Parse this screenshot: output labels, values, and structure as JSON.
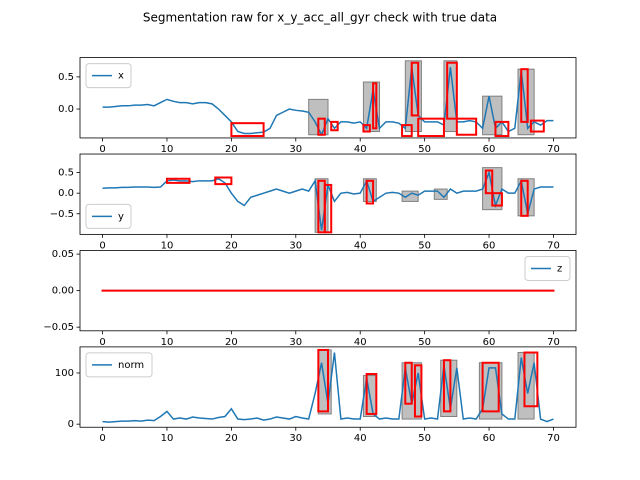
{
  "title": "Segmentation raw for x_y_acc_all_gyr check with true data",
  "chart_data": [
    {
      "type": "line",
      "legend": "upper left",
      "xlim": [
        -3.5,
        73.5
      ],
      "xticks": [
        0,
        10,
        20,
        30,
        40,
        50,
        60,
        70
      ],
      "ylim": [
        -0.45,
        0.8
      ],
      "yticks": [
        {
          "value": 0,
          "label": "0.0"
        },
        0.5
      ],
      "x": [
        0,
        1,
        2,
        3,
        4,
        5,
        6,
        7,
        8,
        9,
        10,
        11,
        12,
        13,
        14,
        15,
        16,
        17,
        18,
        19,
        20,
        21,
        22,
        23,
        24,
        25,
        26,
        27,
        28,
        29,
        30,
        31,
        32,
        33,
        34,
        35,
        36,
        37,
        38,
        39,
        40,
        41,
        42,
        43,
        44,
        45,
        46,
        47,
        48,
        49,
        50,
        51,
        52,
        53,
        54,
        55,
        56,
        57,
        58,
        59,
        60,
        61,
        62,
        63,
        64,
        65,
        66,
        67,
        68,
        69,
        70
      ],
      "series": [
        {
          "name": "x",
          "color": "#1f77b4",
          "values": [
            0.03,
            0.03,
            0.04,
            0.05,
            0.05,
            0.06,
            0.06,
            0.07,
            0.05,
            0.1,
            0.15,
            0.12,
            0.1,
            0.1,
            0.08,
            0.1,
            0.1,
            0.08,
            0.0,
            -0.1,
            -0.2,
            -0.35,
            -0.38,
            -0.38,
            -0.37,
            -0.36,
            -0.3,
            -0.1,
            -0.05,
            0.0,
            -0.02,
            -0.03,
            -0.05,
            -0.2,
            -0.4,
            -0.15,
            -0.3,
            -0.2,
            -0.2,
            -0.22,
            -0.2,
            -0.3,
            0.3,
            -0.3,
            -0.2,
            -0.2,
            -0.22,
            -0.3,
            0.65,
            -0.1,
            -0.2,
            -0.2,
            -0.2,
            -0.25,
            0.65,
            -0.2,
            -0.2,
            -0.18,
            -0.2,
            -0.3,
            0.2,
            -0.3,
            -0.2,
            -0.35,
            -0.3,
            0.6,
            -0.3,
            -0.2,
            -0.25,
            -0.18,
            -0.18
          ]
        }
      ],
      "gray_color": "#808080",
      "gray_regions": [
        {
          "x": [
            32,
            35
          ],
          "y": [
            -0.4,
            0.15
          ]
        },
        {
          "x": [
            40.5,
            43
          ],
          "y": [
            -0.35,
            0.42
          ]
        },
        {
          "x": [
            47,
            49.5
          ],
          "y": [
            -0.35,
            0.75
          ]
        },
        {
          "x": [
            53,
            55
          ],
          "y": [
            -0.35,
            0.75
          ]
        },
        {
          "x": [
            59,
            62
          ],
          "y": [
            -0.4,
            0.2
          ]
        },
        {
          "x": [
            64.5,
            67
          ],
          "y": [
            -0.4,
            0.62
          ]
        }
      ],
      "red_color": "#ff0000",
      "red_regions": [
        {
          "x": [
            20,
            25
          ],
          "y": [
            -0.42,
            -0.22
          ]
        },
        {
          "x": [
            33.5,
            34.5
          ],
          "y": [
            -0.4,
            -0.15
          ]
        },
        {
          "x": [
            35.5,
            36.5
          ],
          "y": [
            -0.33,
            -0.2
          ]
        },
        {
          "x": [
            40.5,
            41.5
          ],
          "y": [
            -0.35,
            -0.25
          ]
        },
        {
          "x": [
            42,
            42.5
          ],
          "y": [
            -0.3,
            0.4
          ]
        },
        {
          "x": [
            46.5,
            48
          ],
          "y": [
            -0.42,
            -0.25
          ]
        },
        {
          "x": [
            48,
            49
          ],
          "y": [
            -0.1,
            0.72
          ]
        },
        {
          "x": [
            49,
            53
          ],
          "y": [
            -0.42,
            -0.15
          ]
        },
        {
          "x": [
            53.5,
            55
          ],
          "y": [
            -0.15,
            0.72
          ]
        },
        {
          "x": [
            55,
            58
          ],
          "y": [
            -0.4,
            -0.15
          ]
        },
        {
          "x": [
            61,
            63
          ],
          "y": [
            -0.42,
            -0.2
          ]
        },
        {
          "x": [
            65,
            66
          ],
          "y": [
            -0.2,
            0.62
          ]
        },
        {
          "x": [
            66.5,
            68.5
          ],
          "y": [
            -0.35,
            -0.18
          ]
        }
      ]
    },
    {
      "type": "line",
      "legend": "lower left",
      "xlim": [
        -3.5,
        73.5
      ],
      "xticks": [
        0,
        10,
        20,
        30,
        40,
        50,
        60,
        70
      ],
      "ylim": [
        -1.0,
        0.95
      ],
      "yticks": [
        {
          "value": -0.5,
          "label": "−0.5"
        },
        {
          "value": 0,
          "label": "0.0"
        },
        0.5
      ],
      "x": [
        0,
        1,
        2,
        3,
        4,
        5,
        6,
        7,
        8,
        9,
        10,
        11,
        12,
        13,
        14,
        15,
        16,
        17,
        18,
        19,
        20,
        21,
        22,
        23,
        24,
        25,
        26,
        27,
        28,
        29,
        30,
        31,
        32,
        33,
        34,
        35,
        36,
        37,
        38,
        39,
        40,
        41,
        42,
        43,
        44,
        45,
        46,
        47,
        48,
        49,
        50,
        51,
        52,
        53,
        54,
        55,
        56,
        57,
        58,
        59,
        60,
        61,
        62,
        63,
        64,
        65,
        66,
        67,
        68,
        69,
        70
      ],
      "series": [
        {
          "name": "y",
          "color": "#1f77b4",
          "values": [
            0.12,
            0.13,
            0.13,
            0.14,
            0.14,
            0.15,
            0.15,
            0.15,
            0.14,
            0.15,
            0.3,
            0.32,
            0.3,
            0.3,
            0.28,
            0.3,
            0.3,
            0.3,
            0.35,
            0.25,
            0.0,
            -0.2,
            -0.3,
            -0.1,
            -0.05,
            0.0,
            0.05,
            0.1,
            0.05,
            0.0,
            0.05,
            0.1,
            0.05,
            0.3,
            -0.9,
            0.2,
            -0.2,
            0.0,
            0.02,
            -0.02,
            0.0,
            0.3,
            -0.2,
            -0.1,
            0.0,
            0.02,
            0.0,
            -0.1,
            0.0,
            -0.05,
            0.05,
            0.05,
            0.05,
            -0.1,
            0.1,
            0.0,
            0.05,
            0.05,
            0.05,
            0.1,
            0.5,
            -0.3,
            0.1,
            0.0,
            0.0,
            0.3,
            -0.5,
            0.1,
            0.15,
            0.15,
            0.15
          ]
        }
      ],
      "gray_color": "#808080",
      "gray_regions": [
        {
          "x": [
            33,
            35
          ],
          "y": [
            -0.95,
            0.35
          ]
        },
        {
          "x": [
            40.5,
            42.5
          ],
          "y": [
            -0.2,
            0.35
          ]
        },
        {
          "x": [
            46.5,
            49
          ],
          "y": [
            -0.2,
            0.05
          ]
        },
        {
          "x": [
            51.5,
            53.5
          ],
          "y": [
            -0.15,
            0.1
          ]
        },
        {
          "x": [
            59,
            62
          ],
          "y": [
            -0.4,
            0.62
          ]
        },
        {
          "x": [
            64.5,
            67
          ],
          "y": [
            -0.55,
            0.35
          ]
        }
      ],
      "red_color": "#ff0000",
      "red_regions": [
        {
          "x": [
            10,
            13.5
          ],
          "y": [
            0.25,
            0.35
          ]
        },
        {
          "x": [
            17.5,
            20
          ],
          "y": [
            0.22,
            0.38
          ]
        },
        {
          "x": [
            33.5,
            34.5
          ],
          "y": [
            -0.95,
            0.3
          ]
        },
        {
          "x": [
            34.5,
            35.5
          ],
          "y": [
            -0.95,
            0.2
          ]
        },
        {
          "x": [
            41,
            42
          ],
          "y": [
            -0.25,
            0.3
          ]
        },
        {
          "x": [
            59.5,
            60.5
          ],
          "y": [
            0.0,
            0.55
          ]
        },
        {
          "x": [
            60.5,
            62
          ],
          "y": [
            -0.3,
            0.0
          ]
        },
        {
          "x": [
            65,
            66
          ],
          "y": [
            -0.55,
            0.3
          ]
        }
      ]
    },
    {
      "type": "line",
      "legend": "upper right",
      "xlim": [
        -3.5,
        73.5
      ],
      "xticks": [
        0,
        10,
        20,
        30,
        40,
        50,
        60,
        70
      ],
      "ylim": [
        -0.055,
        0.055
      ],
      "yticks": [
        {
          "value": -0.05,
          "label": "−0.05"
        },
        {
          "value": 0,
          "label": "0.00"
        },
        0.05
      ],
      "x": [
        0,
        70
      ],
      "series": [
        {
          "name": "z",
          "color": "#1f77b4",
          "values": [
            0,
            0
          ]
        }
      ],
      "gray_color": "#808080",
      "gray_regions": [],
      "red_color": "#ff0000",
      "red_regions": [
        {
          "x": [
            0,
            70
          ],
          "y": [
            0,
            0
          ]
        }
      ]
    },
    {
      "type": "line",
      "legend": "upper left",
      "xlim": [
        -3.5,
        73.5
      ],
      "xticks": [
        0,
        10,
        20,
        30,
        40,
        50,
        60,
        70
      ],
      "ylim": [
        -6,
        151
      ],
      "yticks": [
        0,
        100
      ],
      "x": [
        0,
        1,
        2,
        3,
        4,
        5,
        6,
        7,
        8,
        9,
        10,
        11,
        12,
        13,
        14,
        15,
        16,
        17,
        18,
        19,
        20,
        21,
        22,
        23,
        24,
        25,
        26,
        27,
        28,
        29,
        30,
        31,
        32,
        33,
        34,
        35,
        36,
        37,
        38,
        39,
        40,
        41,
        42,
        43,
        44,
        45,
        46,
        47,
        48,
        49,
        50,
        51,
        52,
        53,
        54,
        55,
        56,
        57,
        58,
        59,
        60,
        61,
        62,
        63,
        64,
        65,
        66,
        67,
        68,
        69,
        70
      ],
      "series": [
        {
          "name": "norm",
          "color": "#1f77b4",
          "values": [
            5,
            4,
            5,
            6,
            6,
            7,
            6,
            8,
            7,
            15,
            25,
            10,
            12,
            10,
            14,
            12,
            11,
            10,
            13,
            15,
            30,
            10,
            9,
            10,
            12,
            8,
            10,
            14,
            12,
            10,
            15,
            12,
            10,
            60,
            120,
            40,
            140,
            10,
            12,
            10,
            10,
            90,
            20,
            10,
            12,
            10,
            10,
            110,
            40,
            100,
            10,
            12,
            10,
            115,
            30,
            110,
            10,
            12,
            10,
            30,
            110,
            110,
            20,
            10,
            10,
            130,
            60,
            120,
            10,
            5,
            10
          ]
        }
      ],
      "gray_color": "#808080",
      "gray_regions": [
        {
          "x": [
            33.5,
            35.5
          ],
          "y": [
            20,
            145
          ]
        },
        {
          "x": [
            40.5,
            42.5
          ],
          "y": [
            15,
            95
          ]
        },
        {
          "x": [
            46.5,
            49.5
          ],
          "y": [
            10,
            120
          ]
        },
        {
          "x": [
            52.5,
            55
          ],
          "y": [
            15,
            125
          ]
        },
        {
          "x": [
            58.5,
            62
          ],
          "y": [
            10,
            120
          ]
        },
        {
          "x": [
            64.5,
            67
          ],
          "y": [
            10,
            140
          ]
        }
      ],
      "red_color": "#ff0000",
      "red_regions": [
        {
          "x": [
            33.5,
            35
          ],
          "y": [
            25,
            145
          ]
        },
        {
          "x": [
            41,
            42.5
          ],
          "y": [
            20,
            98
          ]
        },
        {
          "x": [
            47,
            48
          ],
          "y": [
            40,
            120
          ]
        },
        {
          "x": [
            48.5,
            49.5
          ],
          "y": [
            15,
            115
          ]
        },
        {
          "x": [
            53,
            54
          ],
          "y": [
            25,
            125
          ]
        },
        {
          "x": [
            59,
            61.5
          ],
          "y": [
            25,
            120
          ]
        },
        {
          "x": [
            65.5,
            67.5
          ],
          "y": [
            35,
            140
          ]
        }
      ]
    }
  ]
}
